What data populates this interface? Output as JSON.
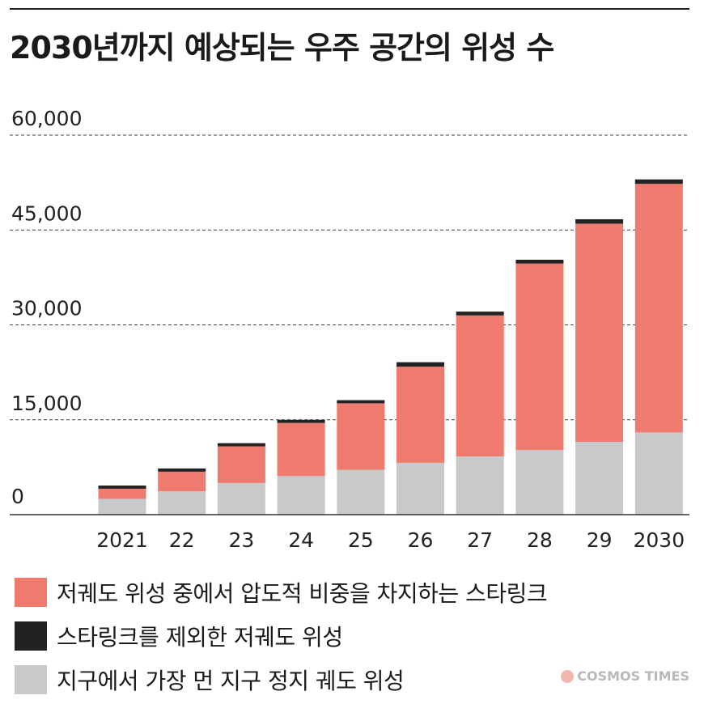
{
  "title": "2030년까지 예상되는 우주 공간의 위성 수",
  "credit": "COSMOS TIMES",
  "colors": {
    "starlink": "#ee7b6d",
    "other_leo": "#222222",
    "geo": "#c8c9cb"
  },
  "legend": [
    {
      "key": "starlink",
      "label": "저궤도 위성 중에서 압도적 비중을 차지하는 스타링크"
    },
    {
      "key": "other_leo",
      "label": "스타링크를 제외한 저궤도 위성"
    },
    {
      "key": "geo",
      "label": "지구에서 가장 먼 지구 정지 궤도 위성"
    }
  ],
  "chart_data": {
    "type": "bar",
    "stacked": true,
    "categories": [
      "2021",
      "22",
      "23",
      "24",
      "25",
      "26",
      "27",
      "28",
      "29",
      "2030"
    ],
    "series": [
      {
        "key": "geo",
        "name": "지구에서 가장 먼 지구 정지 궤도 위성",
        "values": [
          2500,
          3700,
          5000,
          6100,
          7100,
          8200,
          9200,
          10200,
          11500,
          13000
        ]
      },
      {
        "key": "starlink",
        "name": "저궤도 위성 중에서 압도적 비중을 차지하는 스타링크",
        "values": [
          1600,
          3100,
          5800,
          8400,
          10500,
          15200,
          22300,
          29500,
          34500,
          39300
        ]
      },
      {
        "key": "other_leo",
        "name": "스타링크를 제외한 저궤도 위성",
        "values": [
          500,
          500,
          500,
          500,
          500,
          700,
          600,
          600,
          700,
          700
        ]
      }
    ],
    "y_ticks": [
      {
        "value": 0,
        "label": "0"
      },
      {
        "value": 15000,
        "label": "15,000"
      },
      {
        "value": 30000,
        "label": "30,000"
      },
      {
        "value": 45000,
        "label": "45,000"
      },
      {
        "value": 60000,
        "label": "60,000"
      }
    ],
    "ylim": [
      0,
      60000
    ],
    "grid": "dashed horizontal",
    "legend_position": "bottom"
  }
}
